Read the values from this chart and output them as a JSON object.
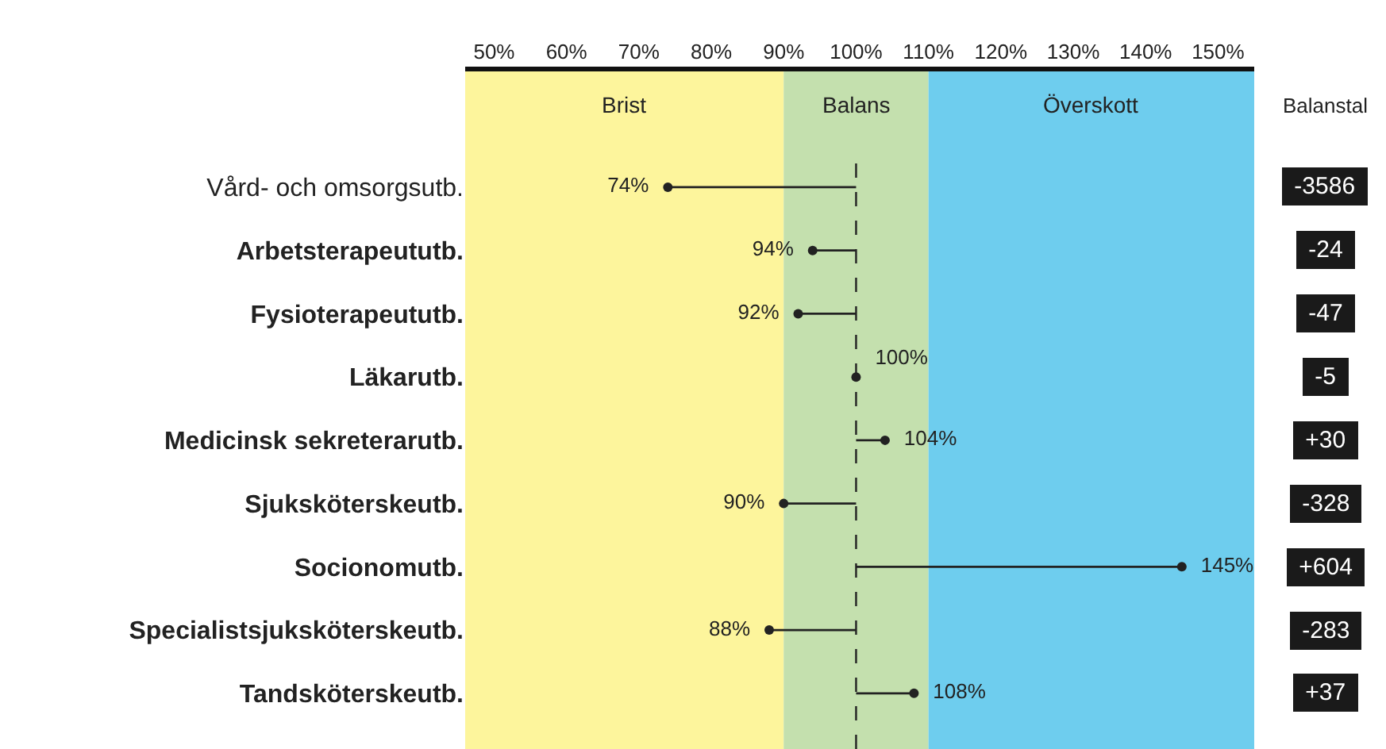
{
  "chart_data": {
    "type": "lollipop",
    "orientation": "horizontal",
    "categories": [
      "Vård- och omsorgsutb.",
      "Arbetsterapeututb.",
      "Fysioterapeututb.",
      "Läkarutb.",
      "Medicinsk sekreterarutb.",
      "Sjuksköterskeutb.",
      "Socionomutb.",
      "Specialistsjuksköterskeutb.",
      "Tandsköterskeutb."
    ],
    "values": [
      74,
      94,
      92,
      100,
      104,
      90,
      145,
      88,
      108
    ],
    "value_labels": [
      "74%",
      "94%",
      "92%",
      "100%",
      "104%",
      "90%",
      "145%",
      "88%",
      "108%"
    ],
    "color": "#222222",
    "marker": "circle",
    "xlim": [
      46,
      155
    ],
    "xticks": [
      {
        "value": 50,
        "label": "50%"
      },
      {
        "value": 60,
        "label": "60%"
      },
      {
        "value": 70,
        "label": "70%"
      },
      {
        "value": 80,
        "label": "80%"
      },
      {
        "value": 90,
        "label": "90%"
      },
      {
        "value": 100,
        "label": "100%"
      },
      {
        "value": 110,
        "label": "110%"
      },
      {
        "value": 120,
        "label": "120%"
      },
      {
        "value": 130,
        "label": "130%"
      },
      {
        "value": 140,
        "label": "140%"
      },
      {
        "value": 150,
        "label": "150%"
      }
    ],
    "bands": [
      {
        "axis": "x",
        "from": 46,
        "to": 90,
        "label": "Brist",
        "color": "#fdf59c"
      },
      {
        "axis": "x",
        "from": 90,
        "to": 110,
        "label": "Balans",
        "color": "#c4e0ae"
      },
      {
        "axis": "x",
        "from": 110,
        "to": 155,
        "label": "Överskott",
        "color": "#6ecdee"
      }
    ],
    "ref_lines": [
      {
        "axis": "x",
        "value": 100,
        "line_style": "dashed",
        "color": "#222222"
      }
    ],
    "grid": false,
    "annotations": [
      "Balanstal",
      "-3586",
      "-24",
      "-47",
      "-5",
      "+30",
      "-328",
      "+604",
      "-283",
      "+37"
    ]
  }
}
